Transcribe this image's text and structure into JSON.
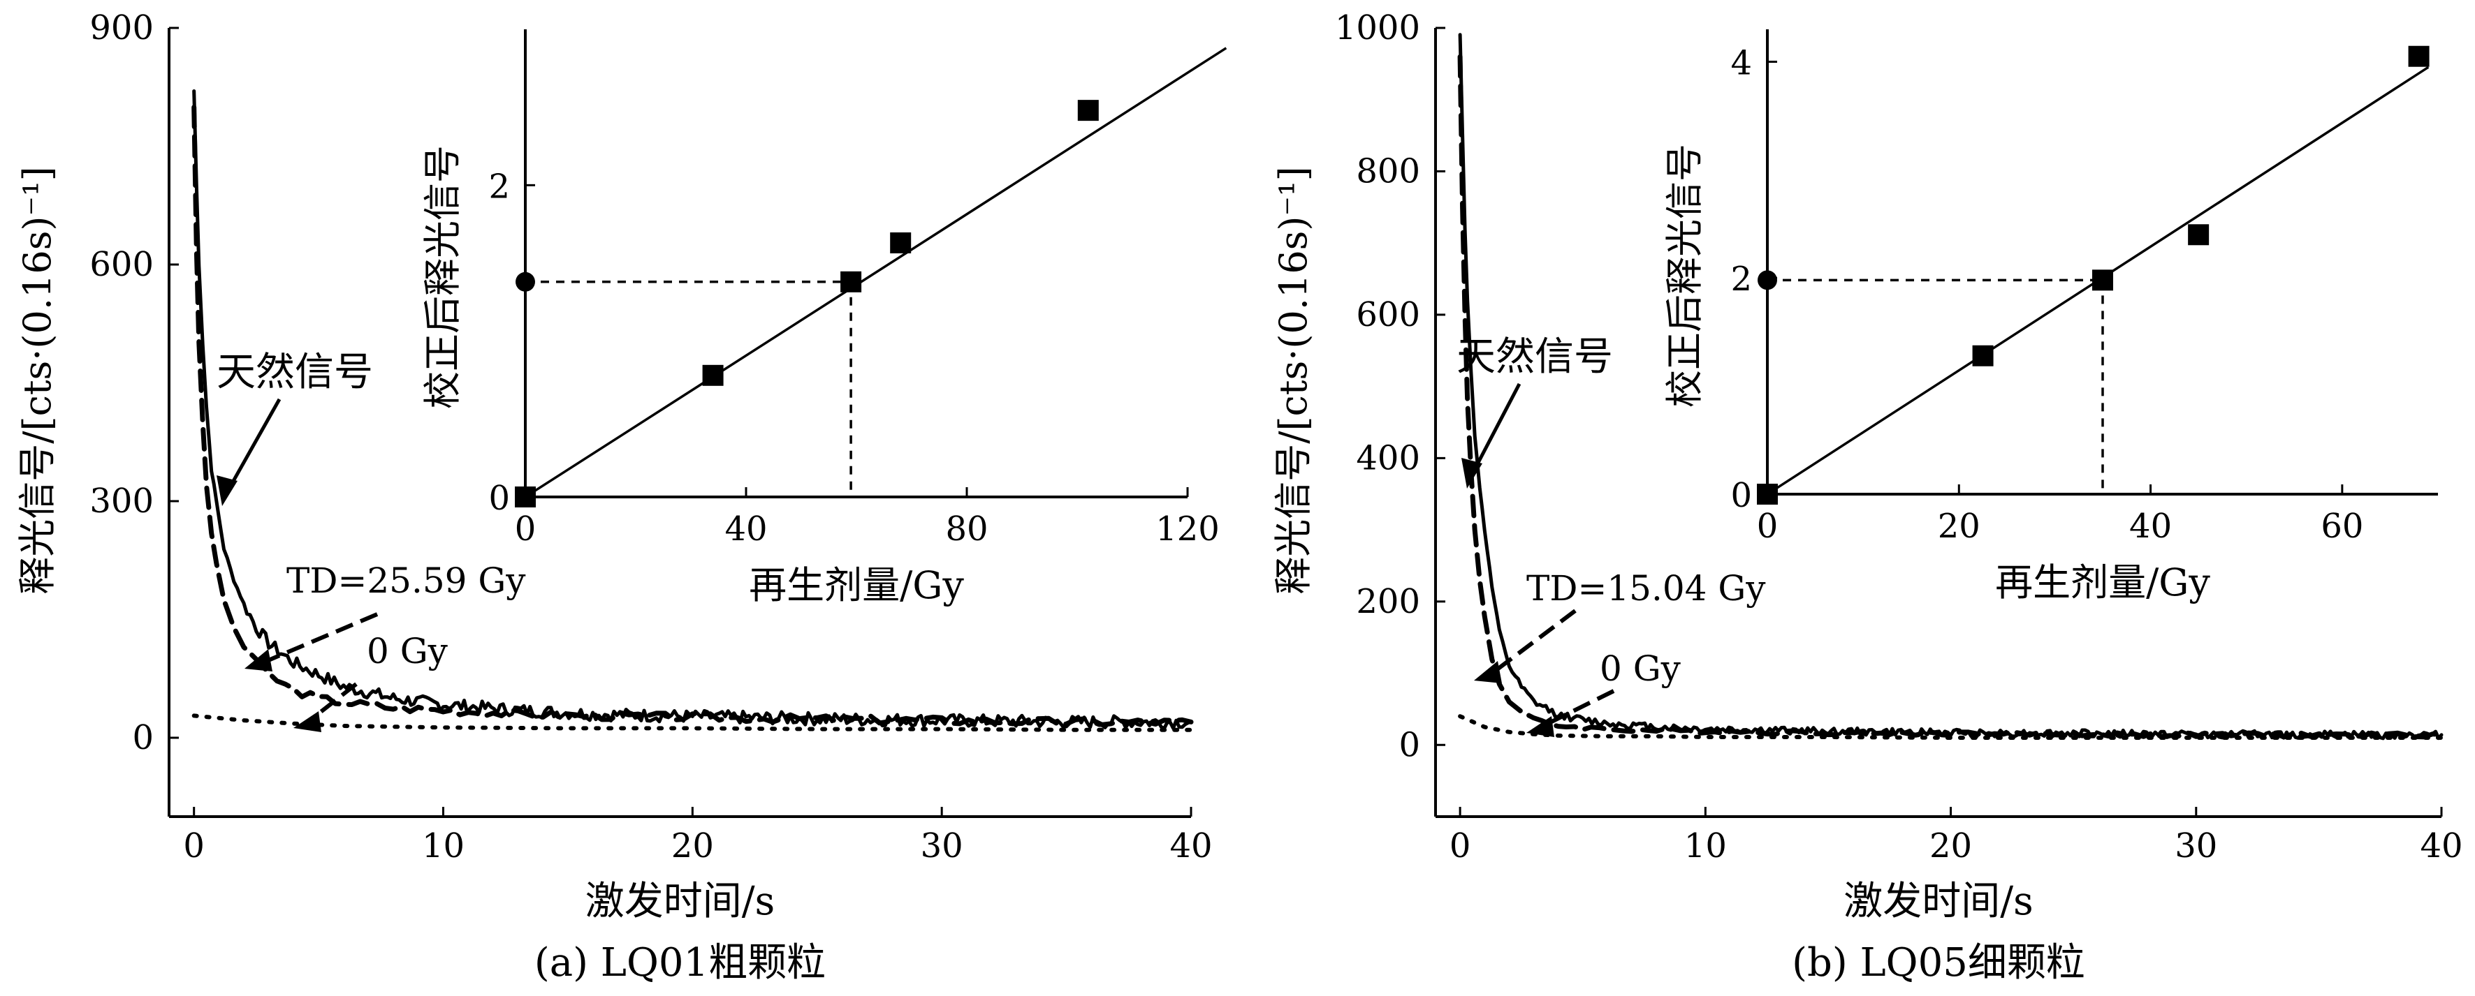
{
  "chart_data": [
    {
      "type": "line",
      "caption": "(a) LQ01粗颗粒",
      "xlabel": "激发时间/s",
      "ylabel": "释光信号/[cts·(0.16s)⁻¹]",
      "xlim": [
        -1,
        40
      ],
      "ylim": [
        -100,
        900
      ],
      "xticks": [
        "0",
        "10",
        "20",
        "30",
        "40"
      ],
      "yticks": [
        "0",
        "300",
        "600",
        "900"
      ],
      "annotations": {
        "natural": "天然信号",
        "td": "TD=25.59 Gy",
        "zero": "0 Gy"
      },
      "series": [
        {
          "style": "solid",
          "x": [
            0,
            0.1,
            0.2,
            0.35,
            0.5,
            0.7,
            0.9,
            1.2,
            1.6,
            2,
            2.5,
            3,
            4,
            5,
            6,
            8,
            10,
            13,
            16,
            20,
            25,
            30,
            35,
            40
          ],
          "y": [
            820,
            700,
            600,
            500,
            420,
            340,
            300,
            240,
            200,
            170,
            140,
            120,
            95,
            80,
            65,
            50,
            42,
            35,
            30,
            27,
            24,
            22,
            20,
            20
          ]
        },
        {
          "style": "dashed",
          "x": [
            0,
            0.1,
            0.2,
            0.35,
            0.5,
            0.7,
            0.9,
            1.2,
            1.6,
            2,
            2.5,
            3,
            4,
            5,
            6,
            8,
            10,
            13,
            16,
            20,
            25,
            30,
            35,
            40
          ],
          "y": [
            800,
            620,
            500,
            400,
            320,
            260,
            220,
            175,
            140,
            115,
            95,
            80,
            60,
            50,
            45,
            38,
            35,
            30,
            28,
            26,
            24,
            22,
            20,
            20
          ]
        },
        {
          "style": "dotted",
          "x": [
            0,
            2,
            4,
            6,
            8,
            10,
            15,
            20,
            25,
            30,
            35,
            40
          ],
          "y": [
            28,
            22,
            18,
            15,
            14,
            13,
            12,
            12,
            11,
            11,
            10,
            10
          ]
        }
      ],
      "inset": {
        "xlabel": "再生剂量/Gy",
        "ylabel": "校正后释光信号",
        "xlim": [
          0,
          120
        ],
        "ylim": [
          0,
          3
        ],
        "xticks": [
          "0",
          "40",
          "80",
          "120"
        ],
        "yticks": [
          "0",
          "2"
        ],
        "points": {
          "x": [
            0,
            34,
            59,
            68,
            102
          ],
          "y": [
            0,
            0.78,
            1.38,
            1.63,
            2.48
          ]
        },
        "fit_line": {
          "x": [
            0,
            127
          ],
          "y": [
            0,
            2.88
          ]
        },
        "natural_point": {
          "x": 0,
          "y": 1.38
        },
        "equivalent_dose": 59
      }
    },
    {
      "type": "line",
      "caption": "(b) LQ05细颗粒",
      "xlabel": "激发时间/s",
      "ylabel": "释光信号/[cts·(0.16s)⁻¹]",
      "xlim": [
        -1,
        40
      ],
      "ylim": [
        -100,
        1000
      ],
      "xticks": [
        "0",
        "10",
        "20",
        "30",
        "40"
      ],
      "yticks": [
        "0",
        "200",
        "400",
        "600",
        "800",
        "1000"
      ],
      "annotations": {
        "natural": "天然信号",
        "td": "TD=15.04 Gy",
        "zero": "0 Gy"
      },
      "series": [
        {
          "style": "solid",
          "x": [
            0,
            0.1,
            0.2,
            0.3,
            0.45,
            0.6,
            0.8,
            1,
            1.3,
            1.6,
            2,
            2.5,
            3,
            4,
            5,
            6,
            8,
            10,
            15,
            20,
            25,
            30,
            35,
            40
          ],
          "y": [
            990,
            850,
            720,
            620,
            520,
            430,
            360,
            300,
            220,
            160,
            110,
            80,
            60,
            42,
            35,
            30,
            25,
            22,
            19,
            17,
            16,
            15,
            14,
            14
          ]
        },
        {
          "style": "dashed",
          "x": [
            0,
            0.1,
            0.2,
            0.3,
            0.45,
            0.6,
            0.8,
            1,
            1.3,
            1.6,
            2,
            2.5,
            3,
            4,
            5,
            6,
            8,
            10,
            15,
            20,
            25,
            30,
            35,
            40
          ],
          "y": [
            960,
            750,
            600,
            480,
            380,
            300,
            230,
            180,
            120,
            85,
            60,
            45,
            35,
            27,
            24,
            22,
            20,
            19,
            17,
            16,
            15,
            14,
            14,
            14
          ]
        },
        {
          "style": "dotted",
          "x": [
            0,
            1,
            2,
            3,
            4,
            6,
            8,
            10,
            15,
            20,
            25,
            30,
            35,
            40
          ],
          "y": [
            40,
            25,
            18,
            15,
            13,
            12,
            12,
            11,
            11,
            10,
            10,
            10,
            10,
            10
          ]
        }
      ],
      "inset": {
        "xlabel": "再生剂量/Gy",
        "ylabel": "校正后释光信号",
        "xlim": [
          0,
          70
        ],
        "ylim": [
          0,
          4.3
        ],
        "xticks": [
          "0",
          "20",
          "40",
          "60"
        ],
        "yticks": [
          "0",
          "2",
          "4"
        ],
        "points": {
          "x": [
            0,
            22.5,
            35,
            45,
            68
          ],
          "y": [
            0,
            1.28,
            1.98,
            2.4,
            4.05
          ]
        },
        "fit_line": {
          "x": [
            0,
            69
          ],
          "y": [
            0,
            3.95
          ]
        },
        "natural_point": {
          "x": 0,
          "y": 1.98
        },
        "equivalent_dose": 35
      }
    }
  ]
}
